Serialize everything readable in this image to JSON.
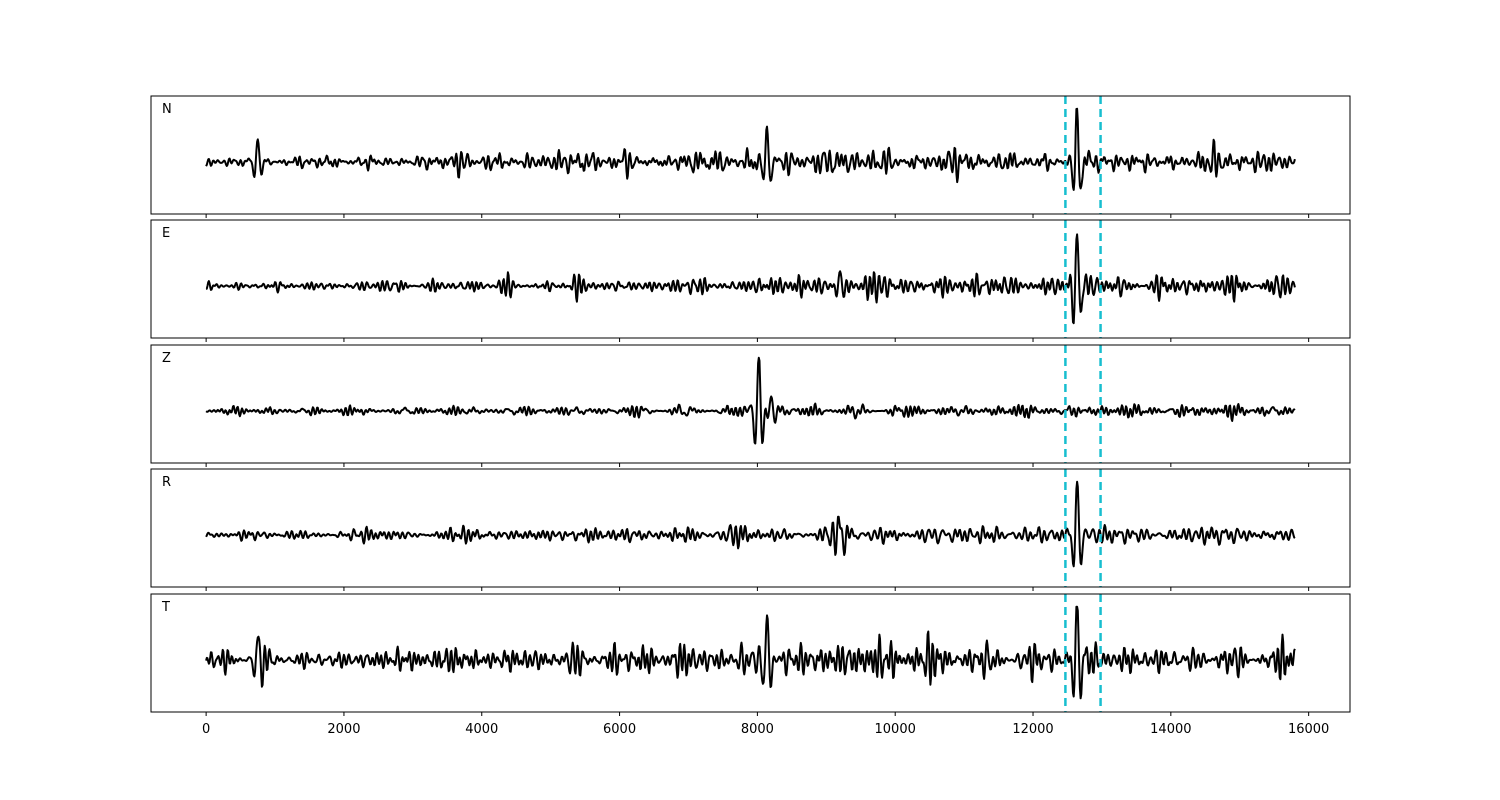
{
  "chart_data": {
    "type": "line",
    "title": "",
    "xlabel": "",
    "ylabel": "",
    "xlim": [
      -800,
      16600
    ],
    "ylim": [
      -1,
      1
    ],
    "xticks": [
      0,
      2000,
      4000,
      6000,
      8000,
      10000,
      12000,
      14000,
      16000
    ],
    "xtick_labels": [
      "0",
      "2000",
      "4000",
      "6000",
      "8000",
      "10000",
      "12000",
      "14000",
      "16000"
    ],
    "grid": false,
    "legend": "none",
    "trace_color": "#000000",
    "marker_color": "#17becf",
    "vertical_markers": [
      12470,
      12980
    ],
    "n_samples": 15800,
    "panels": [
      {
        "label": "N",
        "noise": [
          [
            0,
            0.1
          ],
          [
            7900,
            0.28
          ],
          [
            10500,
            0.25
          ],
          [
            12400,
            0.24
          ],
          [
            15800,
            0.24
          ]
        ],
        "events": [
          {
            "x": 750,
            "amp": 0.38
          },
          {
            "x": 8140,
            "amp": 0.55
          },
          {
            "x": 12640,
            "amp": 0.8
          }
        ]
      },
      {
        "label": "E",
        "noise": [
          [
            0,
            0.09
          ],
          [
            7900,
            0.18
          ],
          [
            9200,
            0.26
          ],
          [
            12400,
            0.24
          ],
          [
            15800,
            0.26
          ]
        ],
        "events": [
          {
            "x": 12640,
            "amp": 0.8
          },
          {
            "x": 9200,
            "amp": 0.25
          }
        ]
      },
      {
        "label": "Z",
        "noise": [
          [
            0,
            0.07
          ],
          [
            7900,
            0.12
          ],
          [
            12400,
            0.12
          ],
          [
            15800,
            0.13
          ]
        ],
        "events": [
          {
            "x": 8020,
            "amp": 0.88
          },
          {
            "x": 8200,
            "amp": 0.25
          }
        ]
      },
      {
        "label": "R",
        "noise": [
          [
            0,
            0.08
          ],
          [
            7900,
            0.18
          ],
          [
            9200,
            0.22
          ],
          [
            12400,
            0.22
          ],
          [
            15800,
            0.24
          ]
        ],
        "events": [
          {
            "x": 12640,
            "amp": 0.85
          },
          {
            "x": 9200,
            "amp": 0.25
          }
        ]
      },
      {
        "label": "T",
        "noise": [
          [
            0,
            0.18
          ],
          [
            7900,
            0.38
          ],
          [
            12400,
            0.38
          ],
          [
            15800,
            0.28
          ]
        ],
        "events": [
          {
            "x": 750,
            "amp": 0.4
          },
          {
            "x": 8140,
            "amp": 0.75
          },
          {
            "x": 12640,
            "amp": 0.85
          }
        ]
      }
    ]
  }
}
